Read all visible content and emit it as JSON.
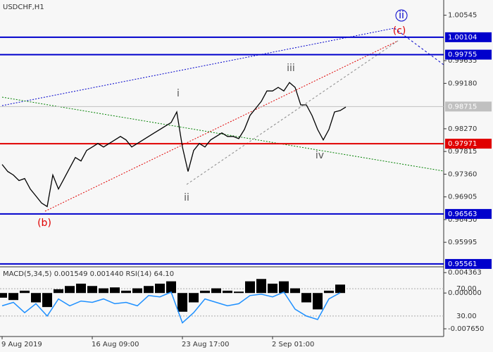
{
  "chart_data": [
    {
      "type": "line",
      "title": "USDCHF,H1",
      "categories": [
        "9 Aug 2019",
        null,
        null,
        null,
        null,
        null,
        null,
        null,
        null,
        null,
        null,
        null,
        null,
        null,
        null,
        null,
        "16 Aug 09:00",
        null,
        null,
        null,
        null,
        null,
        null,
        null,
        null,
        null,
        null,
        null,
        null,
        null,
        null,
        null,
        "23 Aug 17:00",
        null,
        null,
        null,
        null,
        null,
        null,
        null,
        null,
        null,
        null,
        null,
        null,
        null,
        null,
        null,
        "2 Sep 01:00",
        null,
        null,
        null,
        null,
        null,
        null,
        null,
        null,
        null,
        null,
        null,
        null,
        null
      ],
      "values": [
        0.97554,
        0.97413,
        0.97343,
        0.97231,
        0.97273,
        0.97062,
        0.96922,
        0.96782,
        0.96711,
        0.97343,
        0.97062,
        0.97273,
        0.97484,
        0.97694,
        0.97624,
        0.97835,
        0.97905,
        0.97975,
        0.97905,
        0.97975,
        0.98045,
        0.98116,
        0.98045,
        0.97905,
        0.97975,
        0.98045,
        0.98116,
        0.98186,
        0.98256,
        0.98326,
        0.98396,
        0.98607,
        0.97905,
        0.97413,
        0.97835,
        0.97975,
        0.97905,
        0.98045,
        0.98116,
        0.98186,
        0.98116,
        0.98116,
        0.98073,
        0.98256,
        0.98537,
        0.98677,
        0.98818,
        0.99028,
        0.99028,
        0.99099,
        0.99028,
        0.99197,
        0.99099,
        0.98748,
        0.98748,
        0.98537,
        0.98256,
        0.98045,
        0.98256,
        0.98607,
        0.98635,
        0.98705
      ],
      "color": "#000000",
      "ylim": [
        0.9556,
        1.0085
      ],
      "yticks": [
        1.00545,
        0.99635,
        {
          "value": 0.9918,
          "label": "0.99180"
        },
        {
          "value": 0.9827,
          "label": "0.98270"
        },
        0.97815,
        {
          "value": 0.9736,
          "label": "0.97360"
        },
        0.96905,
        {
          "value": 0.9645,
          "label": "0.96450"
        },
        0.95995
      ],
      "levels": [
        {
          "value": 1.00104,
          "color": "#0000cc"
        },
        {
          "value": 0.99755,
          "color": "#0000cc"
        },
        {
          "value": 0.98715,
          "color": "#c0c0c0"
        },
        {
          "value": 0.97971,
          "color": "#e00000"
        },
        {
          "value": 0.96563,
          "color": "#0000cc"
        },
        {
          "value": 0.95561,
          "color": "#0000cc"
        }
      ],
      "annotations": [
        {
          "text": "ii",
          "color": "#0000cc"
        },
        {
          "text": "(c)",
          "color": "#e00000"
        },
        {
          "text": "iii",
          "color": "#555555"
        },
        {
          "text": "i",
          "color": "#555555"
        },
        {
          "text": "iv",
          "color": "#555555"
        },
        {
          "text": "ii",
          "color": "#555555"
        },
        {
          "text": "(b)",
          "color": "#e00000"
        }
      ]
    },
    {
      "type": "macd",
      "title": "MACD(5,34,5) 0.001549 0.001440 RSI(14) 64.10",
      "values": [
        -0.001,
        -0.0015,
        0.0005,
        -0.002,
        -0.003,
        0.0008,
        0.0015,
        0.002,
        0.0015,
        0.001,
        0.0012,
        0.0005,
        0.001,
        0.0015,
        0.002,
        0.0025,
        -0.004,
        -0.002,
        0.0005,
        0.001,
        0.0005,
        0.0003,
        0.0025,
        0.003,
        0.002,
        0.0025,
        0.001,
        -0.002,
        -0.0035,
        0.0005,
        0.0018
      ],
      "color": "#000000",
      "rsi_values": [
        45,
        50,
        35,
        48,
        30,
        55,
        45,
        52,
        50,
        55,
        48,
        50,
        45,
        60,
        58,
        65,
        20,
        35,
        55,
        50,
        45,
        48,
        60,
        62,
        58,
        65,
        40,
        30,
        25,
        55,
        64
      ],
      "rsi_color": "#1e90ff",
      "ylim": [
        -0.0093,
        0.0053
      ],
      "yticks": [
        0.004363,
        {
          "value": 0,
          "label": "0.000000"
        },
        {
          "value": -0.00765,
          "label": "-0.007650"
        }
      ],
      "y2lim": [
        0,
        100
      ],
      "y2ticks": [
        {
          "value": 70,
          "label": "70.00"
        },
        {
          "value": 30,
          "label": "30.00"
        }
      ]
    }
  ]
}
